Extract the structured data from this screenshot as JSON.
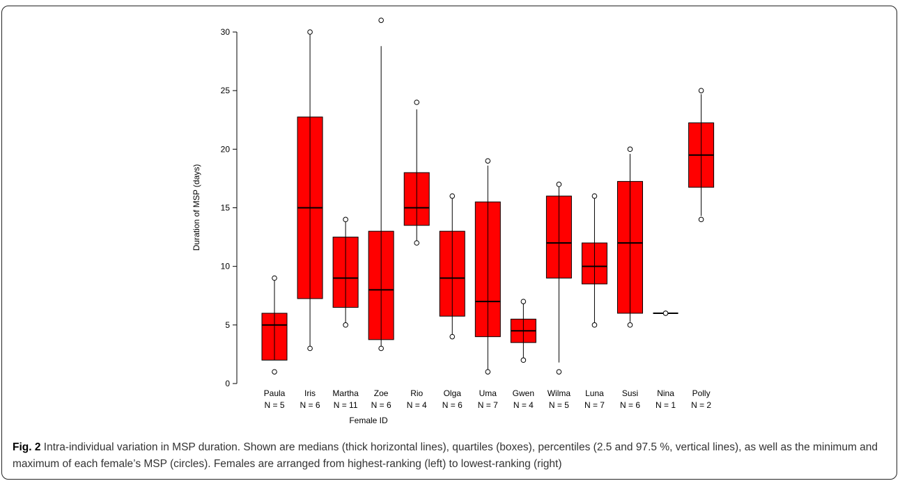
{
  "caption": {
    "label": "Fig. 2",
    "text": "Intra-individual variation in MSP duration. Shown are medians (thick horizontal lines), quartiles (boxes), percentiles (2.5 and 97.5 %, vertical lines), as well as the minimum and maximum of each female’s MSP (circles). Females are arranged from highest-ranking (left) to lowest-ranking (right)"
  },
  "colors": {
    "box_fill": "#ff0000",
    "stroke": "#000000"
  },
  "chart_data": {
    "type": "boxplot",
    "xlabel": "Female ID",
    "ylabel": "Duration of MSP (days)",
    "ylim": [
      0,
      30
    ],
    "yticks": [
      0,
      5,
      10,
      15,
      20,
      25,
      30
    ],
    "grid": false,
    "legend": "none",
    "boxes": [
      {
        "name": "Paula",
        "n_label": "N = 5",
        "min": 1,
        "p2_5": 2,
        "q1": 2,
        "median": 5,
        "q3": 6,
        "p97_5": 9,
        "max": 9
      },
      {
        "name": "Iris",
        "n_label": "N = 6",
        "min": 3,
        "p2_5": 3,
        "q1": 7.25,
        "median": 15,
        "q3": 22.75,
        "p97_5": 30,
        "max": 30
      },
      {
        "name": "Martha",
        "n_label": "N = 11",
        "min": 5,
        "p2_5": 5,
        "q1": 6.5,
        "median": 9,
        "q3": 12.5,
        "p97_5": 14,
        "max": 14
      },
      {
        "name": "Zoe",
        "n_label": "N = 6",
        "min": 3,
        "p2_5": 3,
        "q1": 3.75,
        "median": 8,
        "q3": 13,
        "p97_5": 28.8,
        "max": 31
      },
      {
        "name": "Rio",
        "n_label": "N = 4",
        "min": 12,
        "p2_5": 12,
        "q1": 13.5,
        "median": 15,
        "q3": 18,
        "p97_5": 23.4,
        "max": 24
      },
      {
        "name": "Olga",
        "n_label": "N = 6",
        "min": 4,
        "p2_5": 4,
        "q1": 5.75,
        "median": 9,
        "q3": 13,
        "p97_5": 16,
        "max": 16
      },
      {
        "name": "Uma",
        "n_label": "N = 7",
        "min": 1,
        "p2_5": 1,
        "q1": 4,
        "median": 7,
        "q3": 15.5,
        "p97_5": 18.6,
        "max": 19
      },
      {
        "name": "Gwen",
        "n_label": "N = 4",
        "min": 2,
        "p2_5": 2,
        "q1": 3.5,
        "median": 4.5,
        "q3": 5.5,
        "p97_5": 6.9,
        "max": 7
      },
      {
        "name": "Wilma",
        "n_label": "N = 5",
        "min": 1,
        "p2_5": 1.8,
        "q1": 9,
        "median": 12,
        "q3": 16,
        "p97_5": 16.9,
        "max": 17
      },
      {
        "name": "Luna",
        "n_label": "N = 7",
        "min": 5,
        "p2_5": 5,
        "q1": 8.5,
        "median": 10,
        "q3": 12,
        "p97_5": 16,
        "max": 16
      },
      {
        "name": "Susi",
        "n_label": "N = 6",
        "min": 5,
        "p2_5": 5.25,
        "q1": 6,
        "median": 12,
        "q3": 17.25,
        "p97_5": 19.6,
        "max": 20
      },
      {
        "name": "Nina",
        "n_label": "N = 1",
        "min": 6,
        "p2_5": 6,
        "q1": 6,
        "median": 6,
        "q3": 6,
        "p97_5": 6,
        "max": 6
      },
      {
        "name": "Polly",
        "n_label": "N = 2",
        "min": 14,
        "p2_5": 14.3,
        "q1": 16.75,
        "median": 19.5,
        "q3": 22.25,
        "p97_5": 24.7,
        "max": 25
      }
    ]
  }
}
